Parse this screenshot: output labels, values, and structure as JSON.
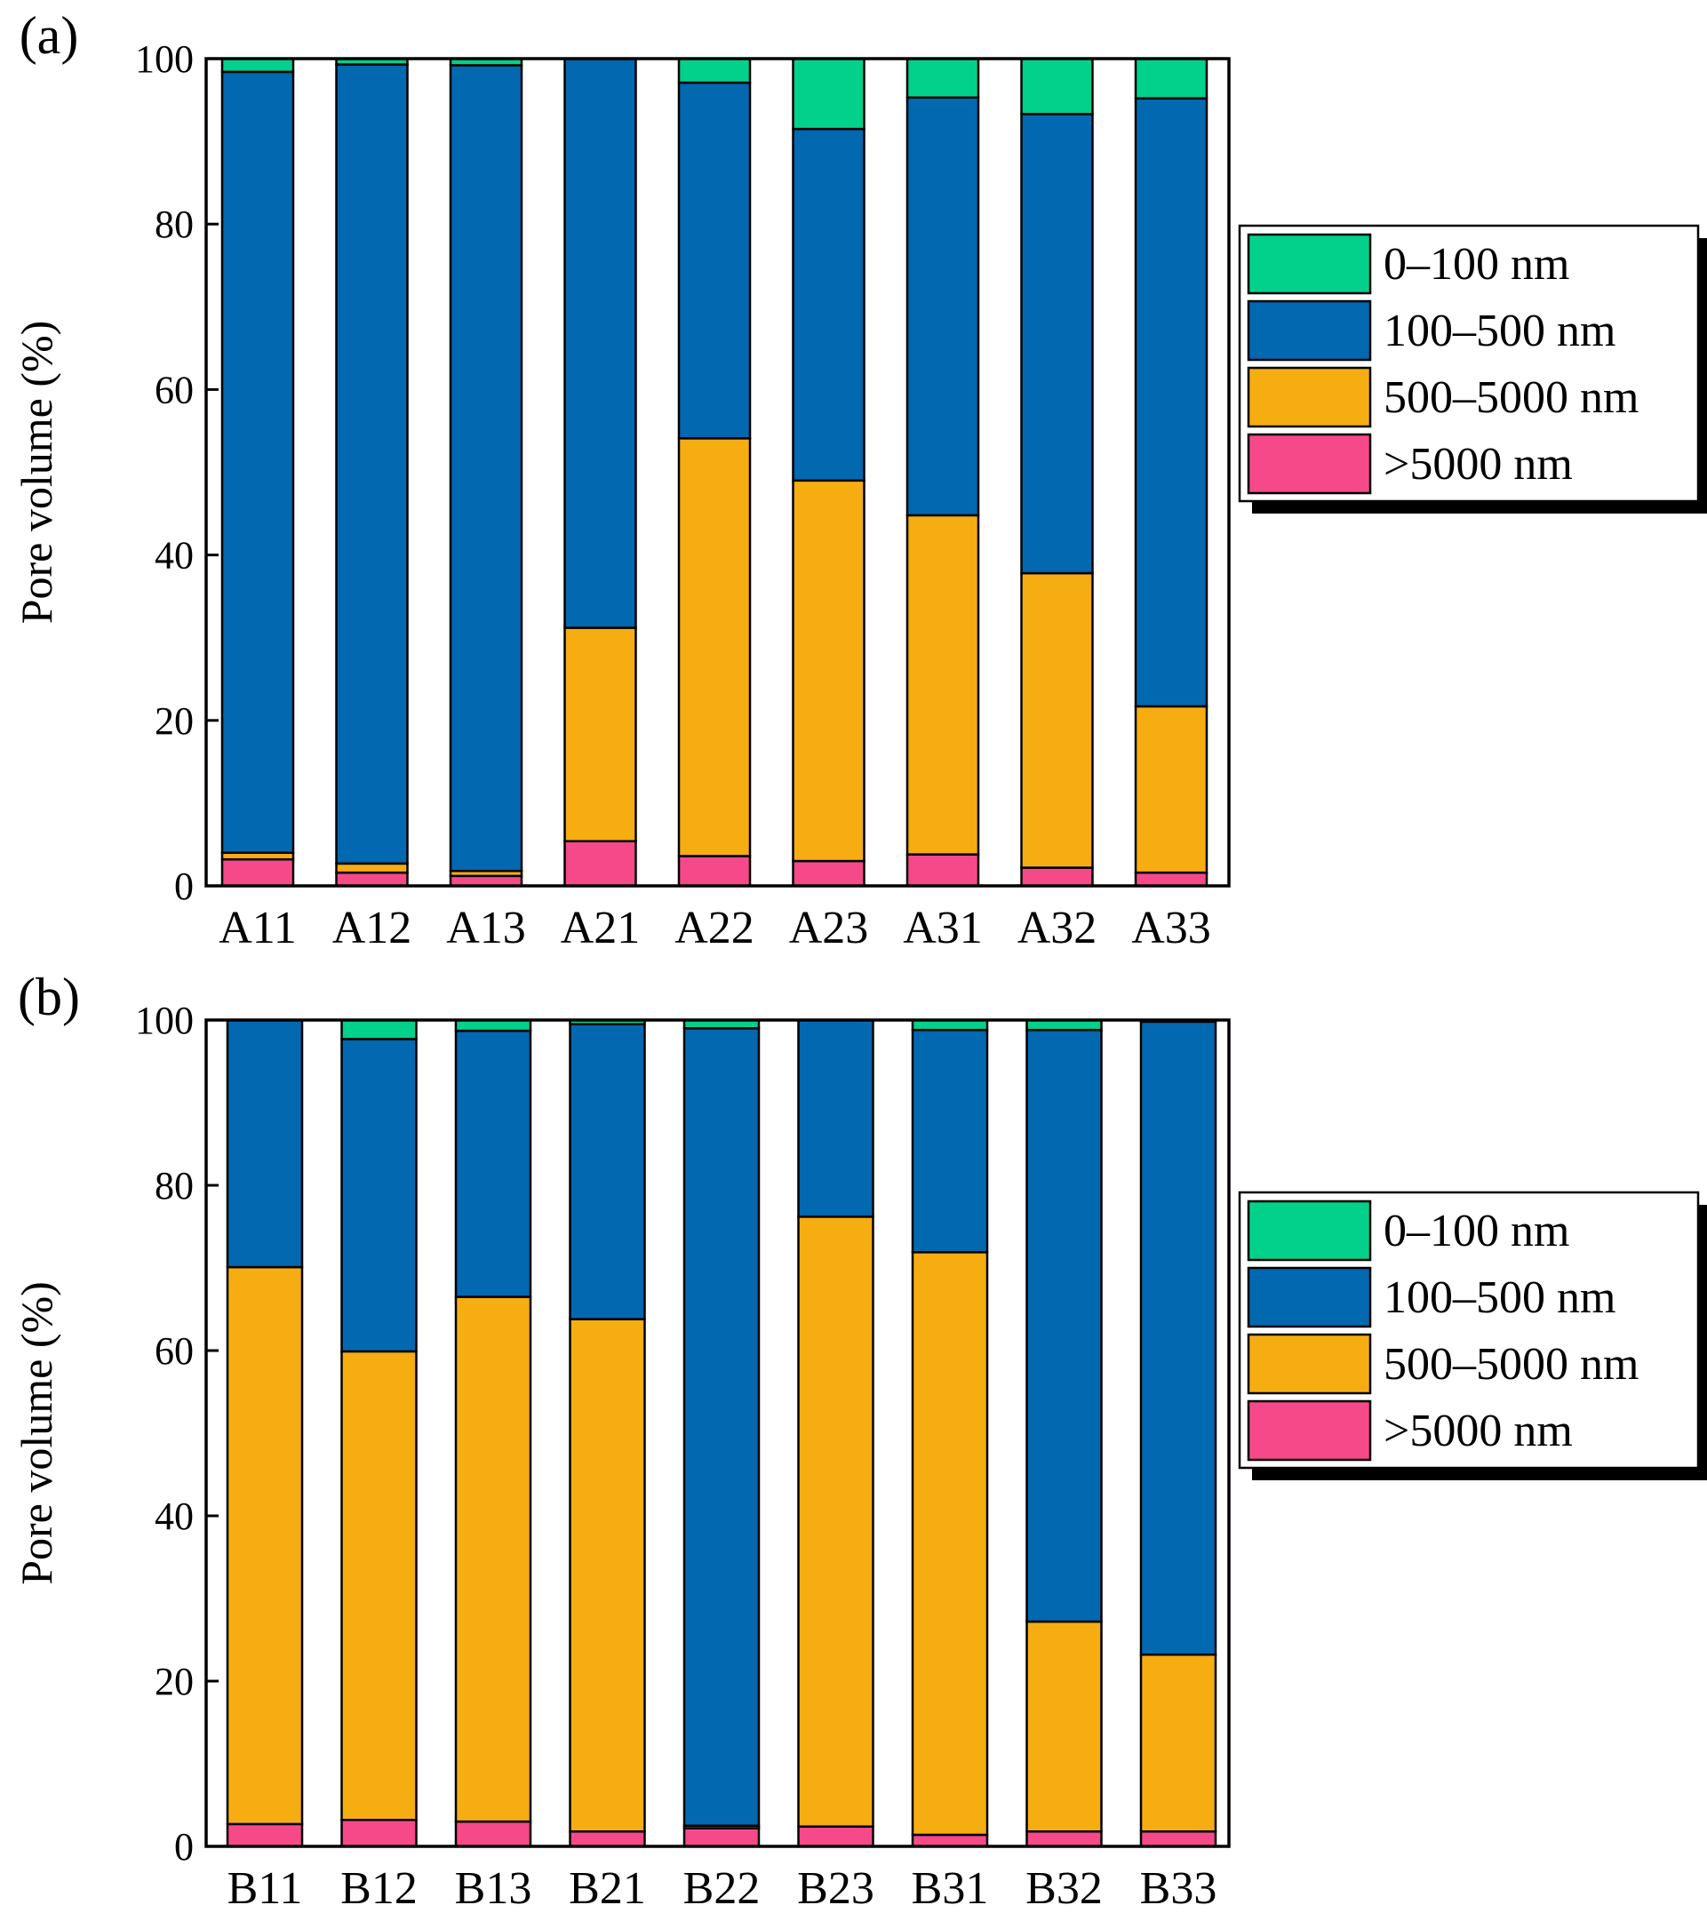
{
  "chart_data": [
    {
      "type": "bar",
      "stacked": true,
      "panel_label": "(a)",
      "ylabel": "Pore volume (%)",
      "ylim": [
        0,
        100
      ],
      "yticks": [
        0,
        20,
        40,
        60,
        80,
        100
      ],
      "categories": [
        "A11",
        "A12",
        "A13",
        "A21",
        "A22",
        "A23",
        "A31",
        "A32",
        "A33"
      ],
      "series": [
        {
          "name": ">5000 nm",
          "color": "#f6498a",
          "values": [
            3.2,
            1.6,
            1.2,
            5.4,
            3.6,
            3.0,
            3.8,
            2.2,
            1.6
          ]
        },
        {
          "name": "500–5000 nm",
          "color": "#f6ad12",
          "values": [
            0.8,
            1.1,
            0.6,
            25.8,
            50.5,
            46.0,
            41.0,
            35.6,
            20.1
          ]
        },
        {
          "name": "100–500 nm",
          "color": "#0268b0",
          "values": [
            94.4,
            96.6,
            97.4,
            68.8,
            43.0,
            42.5,
            50.5,
            55.5,
            73.5
          ]
        },
        {
          "name": "0–100 nm",
          "color": "#02d18c",
          "values": [
            1.6,
            0.7,
            0.8,
            0.0,
            2.9,
            8.5,
            4.7,
            6.7,
            4.8
          ]
        }
      ],
      "legend": {
        "position": "right",
        "entries": [
          "0–100 nm",
          "100–500 nm",
          "500–5000 nm",
          ">5000 nm"
        ]
      }
    },
    {
      "type": "bar",
      "stacked": true,
      "panel_label": "(b)",
      "ylabel": "Pore volume (%)",
      "ylim": [
        0,
        100
      ],
      "yticks": [
        0,
        20,
        40,
        60,
        80,
        100
      ],
      "categories": [
        "B11",
        "B12",
        "B13",
        "B21",
        "B22",
        "B23",
        "B31",
        "B32",
        "B33"
      ],
      "series": [
        {
          "name": ">5000 nm",
          "color": "#f6498a",
          "values": [
            2.7,
            3.2,
            3.0,
            1.8,
            2.2,
            2.4,
            1.4,
            1.8,
            1.8
          ]
        },
        {
          "name": "500–5000 nm",
          "color": "#f6ad12",
          "values": [
            67.4,
            56.7,
            63.5,
            62.0,
            0.3,
            73.8,
            70.5,
            25.4,
            21.4
          ]
        },
        {
          "name": "100–500 nm",
          "color": "#0268b0",
          "values": [
            29.9,
            37.8,
            32.2,
            35.7,
            96.5,
            23.8,
            26.9,
            71.6,
            76.6
          ]
        },
        {
          "name": "0–100 nm",
          "color": "#02d18c",
          "values": [
            0.0,
            2.3,
            1.3,
            0.5,
            1.0,
            0.0,
            1.2,
            1.2,
            0.2
          ]
        }
      ],
      "legend": {
        "position": "right",
        "entries": [
          "0–100 nm",
          "100–500 nm",
          "500–5000 nm",
          ">5000 nm"
        ]
      }
    }
  ]
}
